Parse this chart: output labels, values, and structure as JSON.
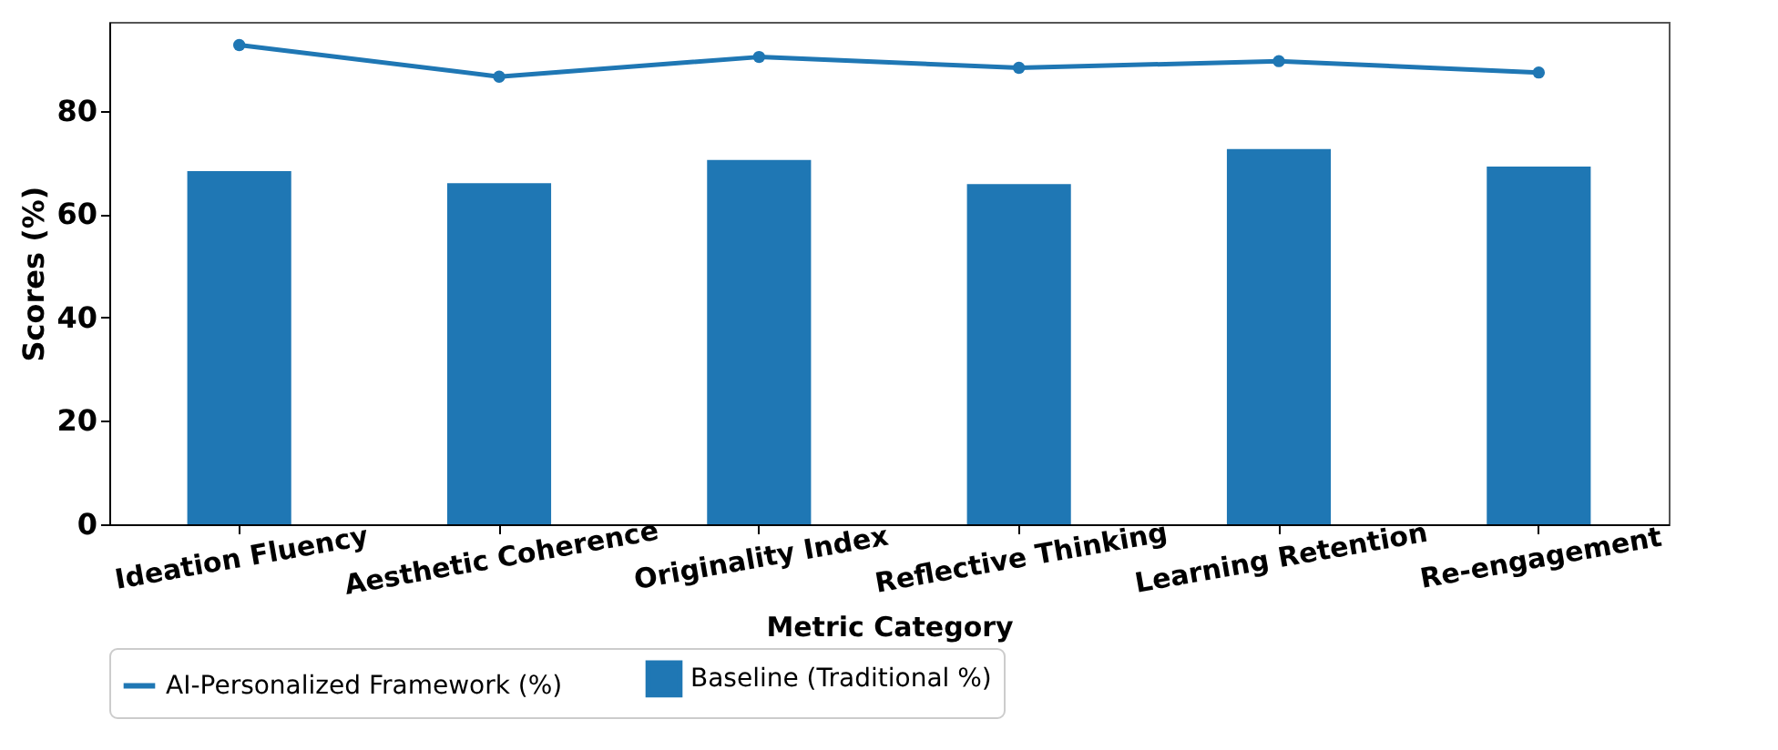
{
  "chart_data": {
    "type": "bar",
    "xlabel": "Metric Category",
    "ylabel": "Scores (%)",
    "categories": [
      "Ideation Fluency",
      "Aesthetic Coherence",
      "Originality Index",
      "Reflective Thinking",
      "Learning Retention",
      "Re-engagement"
    ],
    "series": [
      {
        "name": "AI-Personalized Framework (%)",
        "type": "line",
        "color": "#1f77b4",
        "values": [
          92.7,
          86.6,
          90.4,
          88.3,
          89.6,
          87.4
        ]
      },
      {
        "name": "Baseline (Traditional %)",
        "color": "#1f77b4",
        "values": [
          68.3,
          66.0,
          70.5,
          65.8,
          72.6,
          69.2
        ]
      }
    ],
    "ylim": [
      0,
      97.2
    ],
    "yticks": [
      0,
      20,
      40,
      60,
      80
    ],
    "grid": false,
    "legend": "bottom",
    "marker": "circle",
    "line_style": "solid"
  }
}
